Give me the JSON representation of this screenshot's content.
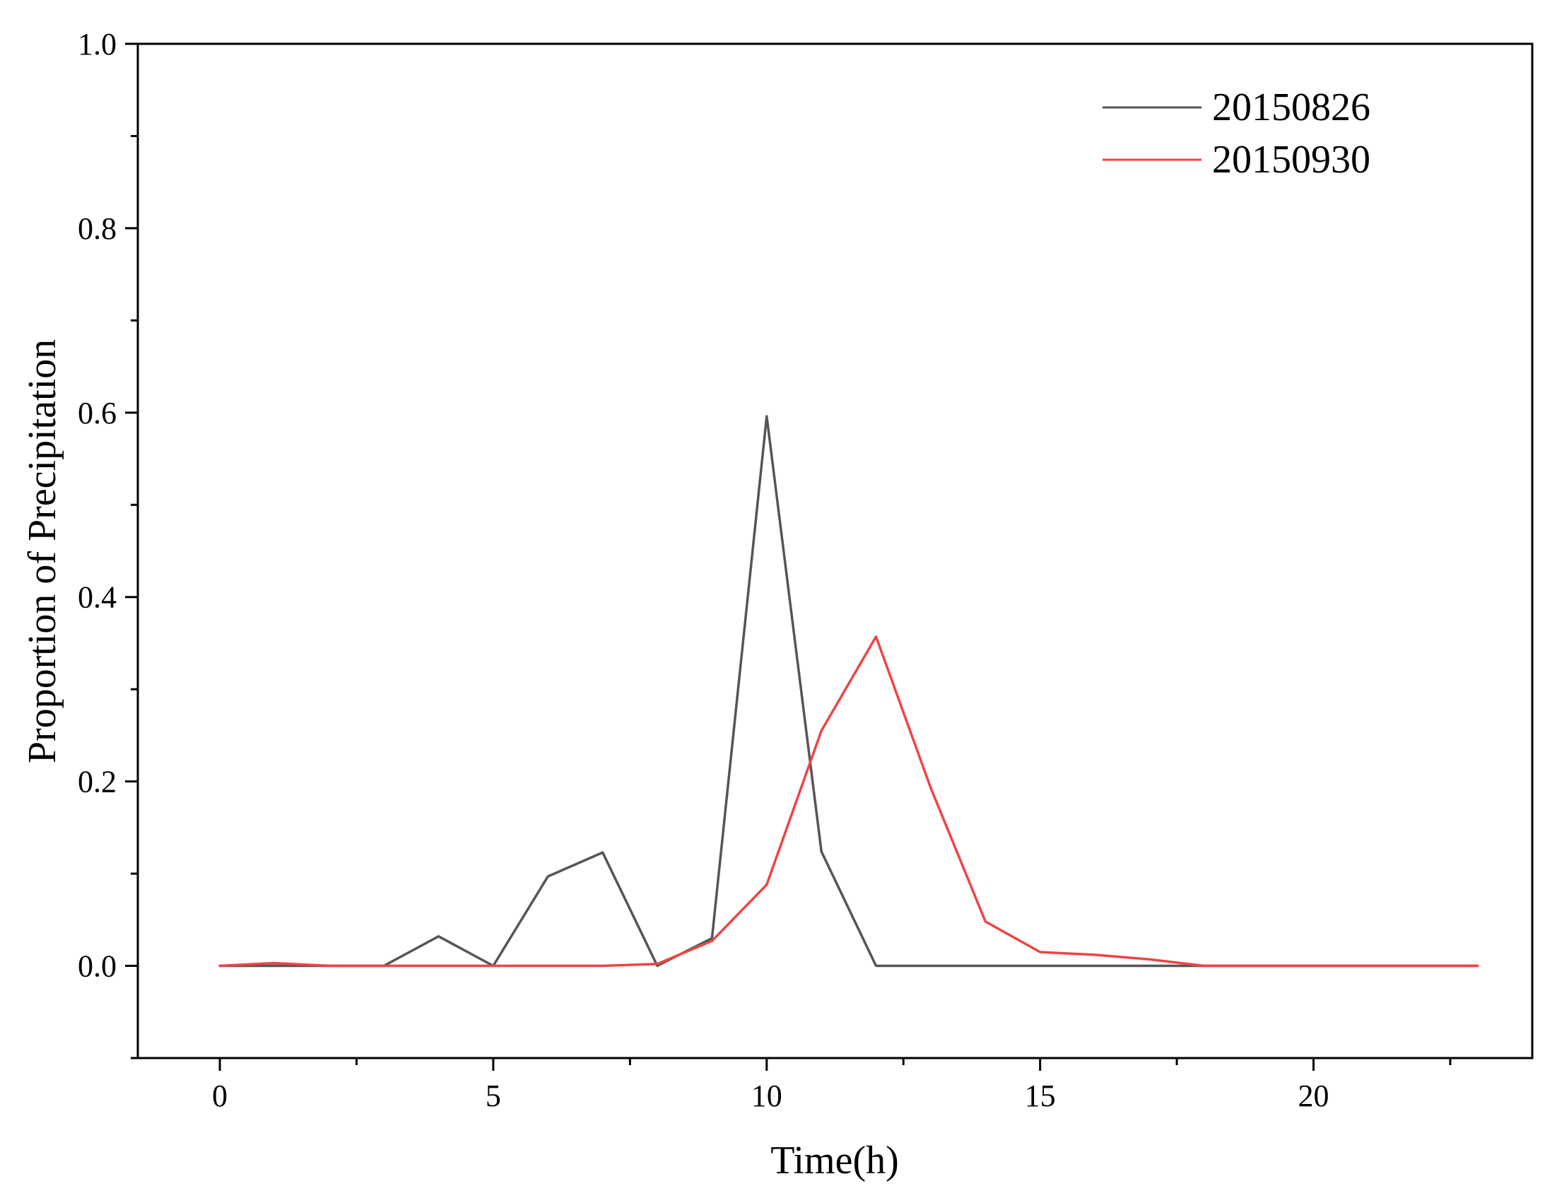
{
  "chart_data": {
    "type": "line",
    "title": "",
    "xlabel": "Time(h)",
    "ylabel": "Proportion of Precipitation",
    "xlim": [
      -1.5,
      24
    ],
    "ylim": [
      -0.1,
      1.0
    ],
    "x_ticks": [
      0,
      5,
      10,
      15,
      20
    ],
    "x_tick_labels": [
      "0",
      "5",
      "10",
      "15",
      "20"
    ],
    "x_minor_ticks": [
      2.5,
      7.5,
      12.5,
      17.5,
      22.5
    ],
    "y_ticks": [
      0.0,
      0.2,
      0.4,
      0.6,
      0.8,
      1.0
    ],
    "y_tick_labels": [
      "0.0",
      "0.2",
      "0.4",
      "0.6",
      "0.8",
      "1.0"
    ],
    "y_minor_ticks": [
      -0.1,
      0.1,
      0.3,
      0.5,
      0.7,
      0.9
    ],
    "grid": false,
    "legend_position": "top-right",
    "x": [
      0,
      1,
      2,
      3,
      4,
      5,
      6,
      7,
      8,
      9,
      10,
      11,
      12,
      13,
      14,
      15,
      16,
      17,
      18,
      19,
      20,
      21,
      22,
      23
    ],
    "series": [
      {
        "name": "20150826",
        "color": "#555555",
        "values": [
          0,
          0,
          0,
          0,
          0.032,
          0,
          0.097,
          0.123,
          0,
          0.03,
          0.596,
          0.124,
          0,
          0,
          0,
          0,
          0,
          0,
          0,
          0,
          0,
          0,
          0,
          0
        ]
      },
      {
        "name": "20150930",
        "color": "#ef4444",
        "values": [
          0,
          0.003,
          0,
          0,
          0,
          0,
          0,
          0,
          0.002,
          0.027,
          0.088,
          0.255,
          0.357,
          0.193,
          0.048,
          0.015,
          0.012,
          0.007,
          0,
          0,
          0,
          0,
          0,
          0
        ]
      }
    ]
  }
}
